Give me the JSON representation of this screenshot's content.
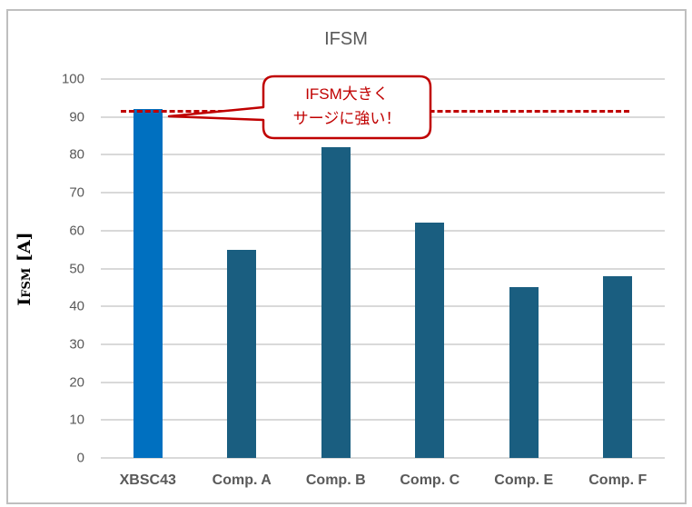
{
  "chart_data": {
    "type": "bar",
    "title": "IFSM",
    "xlabel": "",
    "ylabel": "IFSM [A]",
    "ylabel_main": "I",
    "ylabel_sub": "FSM",
    "ylabel_unit": " [A]",
    "ylim": [
      0,
      100
    ],
    "yticks": [
      "0",
      "10",
      "20",
      "30",
      "40",
      "50",
      "60",
      "70",
      "80",
      "90",
      "100"
    ],
    "grid": true,
    "legend": "none",
    "categories": [
      "XBSC43",
      "Comp. A",
      "Comp. B",
      "Comp. C",
      "Comp. E",
      "Comp. F"
    ],
    "values": [
      92,
      55,
      82,
      62,
      45,
      48
    ],
    "bar_colors": [
      "#0070c0",
      "#1a5e80",
      "#1a5e80",
      "#1a5e80",
      "#1a5e80",
      "#1a5e80"
    ],
    "reference_line": {
      "value": 91.5,
      "style": "dashed",
      "color": "#c00000"
    },
    "annotation": {
      "line1": "IFSM大きく",
      "line2": "サージに強い！",
      "color": "#c00000",
      "points_to": "XBSC43"
    }
  }
}
